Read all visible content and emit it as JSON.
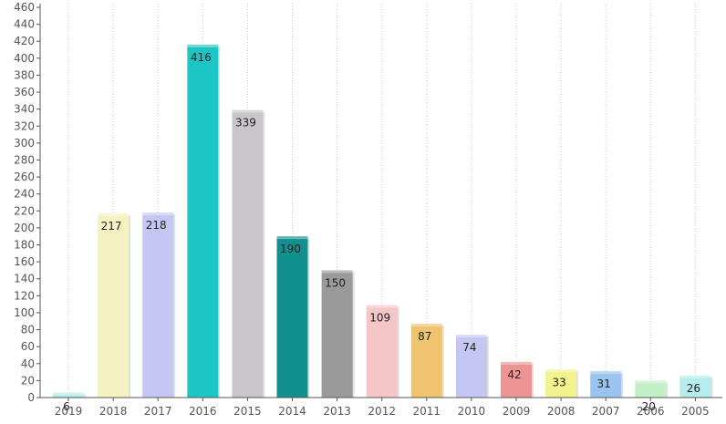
{
  "chart_data": {
    "type": "bar",
    "categories": [
      "2019",
      "2018",
      "2017",
      "2016",
      "2015",
      "2014",
      "2013",
      "2012",
      "2011",
      "2010",
      "2009",
      "2008",
      "2007",
      "2006",
      "2005"
    ],
    "values": [
      6,
      217,
      218,
      416,
      339,
      190,
      150,
      109,
      87,
      74,
      42,
      33,
      31,
      20,
      26
    ],
    "data_labels": [
      "6",
      "217",
      "218",
      "416",
      "339",
      "190",
      "150",
      "109",
      "87",
      "74",
      "42",
      "33",
      "31",
      "20",
      "26"
    ],
    "colors": [
      "#b2ecec",
      "#f5f2c2",
      "#c6c6f2",
      "#1cc6c6",
      "#c8c6c8",
      "#128f8f",
      "#9a9a9a",
      "#f4c6c8",
      "#f0c46e",
      "#c6c6f2",
      "#ee9494",
      "#f2f28e",
      "#9ac4f0",
      "#c2f0c6",
      "#b6ecec"
    ],
    "ylim": [
      0,
      460
    ],
    "yticks": [
      0,
      20,
      40,
      60,
      80,
      100,
      120,
      140,
      160,
      180,
      200,
      220,
      240,
      260,
      280,
      300,
      320,
      340,
      360,
      380,
      400,
      420,
      440,
      460
    ],
    "ytick_labels": [
      "0",
      "20",
      "40",
      "60",
      "80",
      "100",
      "120",
      "140",
      "160",
      "180",
      "200",
      "220",
      "240",
      "260",
      "280",
      "300",
      "320",
      "340",
      "360",
      "380",
      "400",
      "420",
      "440",
      "460"
    ],
    "grid": "vertical-dotted",
    "title": "",
    "xlabel": "",
    "ylabel": ""
  }
}
